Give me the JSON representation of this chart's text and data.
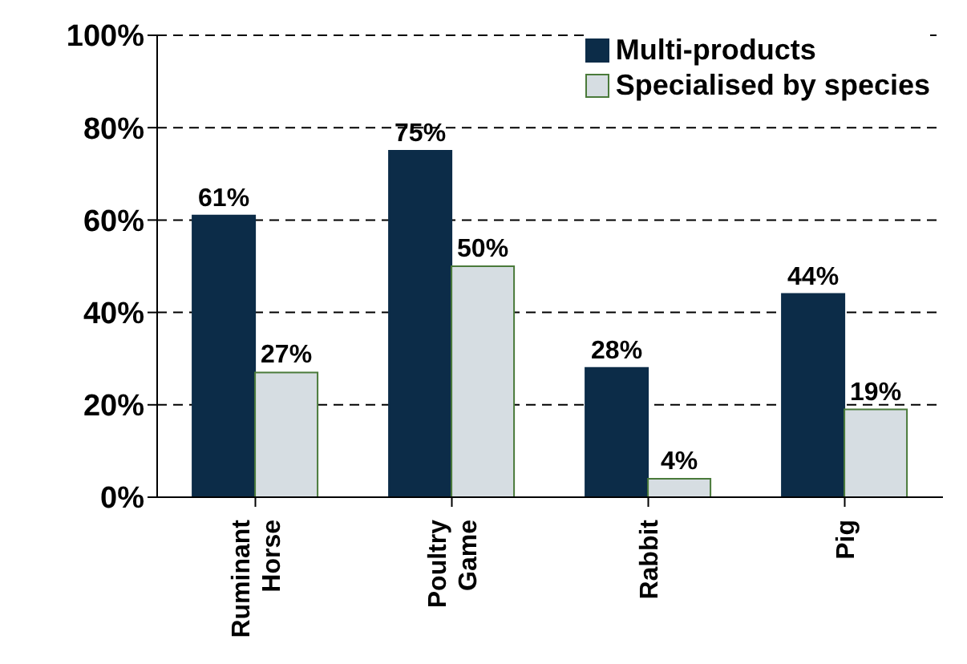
{
  "chart_data": {
    "type": "bar",
    "categories": [
      "Ruminant Horse",
      "Poultry Game",
      "Rabbit",
      "Pig"
    ],
    "series": [
      {
        "name": "Multi-products",
        "color": "#0c2c48",
        "values": [
          61,
          75,
          28,
          44
        ],
        "value_labels": [
          "61%",
          "75%",
          "28%",
          "44%"
        ]
      },
      {
        "name": "Specialised by species",
        "color": "#d6dde2",
        "values": [
          27,
          50,
          4,
          19
        ],
        "value_labels": [
          "27%",
          "50%",
          "4%",
          "19%"
        ]
      }
    ],
    "ylim": [
      0,
      100
    ],
    "yticks": [
      {
        "value": 0,
        "label": "0%"
      },
      {
        "value": 20,
        "label": "20%"
      },
      {
        "value": 40,
        "label": "40%"
      },
      {
        "value": 60,
        "label": "60%"
      },
      {
        "value": 80,
        "label": "80%"
      },
      {
        "value": 100,
        "label": "100%"
      }
    ],
    "grid": "y",
    "legend": "top right"
  }
}
